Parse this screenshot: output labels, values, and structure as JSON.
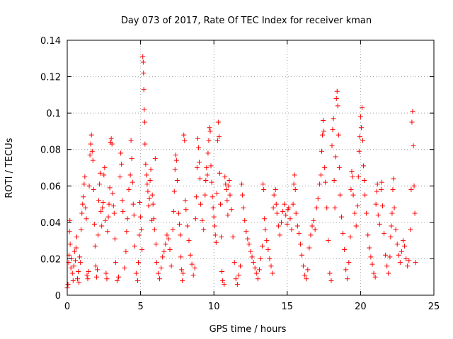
{
  "chart_data": {
    "type": "scatter",
    "title": "Day 073 of 2017, Rate Of TEC Index for receiver kman",
    "xlabel": "GPS time / hours",
    "ylabel": "ROTI / TECUs",
    "xlim": [
      0,
      25
    ],
    "ylim": [
      0,
      0.14
    ],
    "xticks": [
      "0",
      "5",
      "10",
      "15",
      "20",
      "25"
    ],
    "yticks": [
      "0",
      "0.02",
      "0.04",
      "0.06",
      "0.08",
      "0.1",
      "0.12",
      "0.14"
    ],
    "grid": true,
    "marker": "+",
    "color": "#ff0000",
    "points": [
      [
        0.0,
        0.004
      ],
      [
        0.05,
        0.006
      ],
      [
        0.1,
        0.018
      ],
      [
        0.12,
        0.022
      ],
      [
        0.15,
        0.035
      ],
      [
        0.18,
        0.041
      ],
      [
        0.2,
        0.028
      ],
      [
        0.25,
        0.015
      ],
      [
        0.3,
        0.02
      ],
      [
        0.35,
        0.012
      ],
      [
        0.4,
        0.008
      ],
      [
        0.45,
        0.016
      ],
      [
        0.5,
        0.024
      ],
      [
        0.55,
        0.019
      ],
      [
        0.6,
        0.026
      ],
      [
        0.65,
        0.032
      ],
      [
        0.7,
        0.009
      ],
      [
        0.75,
        0.013
      ],
      [
        0.8,
        0.007
      ],
      [
        0.85,
        0.021
      ],
      [
        0.9,
        0.018
      ],
      [
        0.95,
        0.036
      ],
      [
        1.0,
        0.045
      ],
      [
        1.05,
        0.05
      ],
      [
        1.1,
        0.054
      ],
      [
        1.15,
        0.061
      ],
      [
        1.2,
        0.065
      ],
      [
        1.25,
        0.048
      ],
      [
        1.3,
        0.042
      ],
      [
        1.35,
        0.011
      ],
      [
        1.4,
        0.009
      ],
      [
        1.45,
        0.013
      ],
      [
        1.5,
        0.06
      ],
      [
        1.55,
        0.077
      ],
      [
        1.6,
        0.083
      ],
      [
        1.65,
        0.088
      ],
      [
        1.7,
        0.079
      ],
      [
        1.75,
        0.074
      ],
      [
        1.8,
        0.058
      ],
      [
        1.85,
        0.039
      ],
      [
        1.9,
        0.027
      ],
      [
        1.95,
        0.016
      ],
      [
        2.0,
        0.01
      ],
      [
        2.05,
        0.014
      ],
      [
        2.1,
        0.033
      ],
      [
        2.15,
        0.052
      ],
      [
        2.2,
        0.061
      ],
      [
        2.25,
        0.067
      ],
      [
        2.3,
        0.046
      ],
      [
        2.35,
        0.038
      ],
      [
        2.4,
        0.048
      ],
      [
        2.45,
        0.051
      ],
      [
        2.5,
        0.066
      ],
      [
        2.55,
        0.07
      ],
      [
        2.6,
        0.041
      ],
      [
        2.65,
        0.012
      ],
      [
        2.7,
        0.009
      ],
      [
        2.75,
        0.035
      ],
      [
        2.8,
        0.043
      ],
      [
        2.85,
        0.05
      ],
      [
        2.9,
        0.059
      ],
      [
        2.95,
        0.084
      ],
      [
        3.0,
        0.086
      ],
      [
        3.05,
        0.083
      ],
      [
        3.1,
        0.056
      ],
      [
        3.15,
        0.049
      ],
      [
        3.2,
        0.045
      ],
      [
        3.25,
        0.031
      ],
      [
        3.3,
        0.018
      ],
      [
        3.4,
        0.008
      ],
      [
        3.5,
        0.01
      ],
      [
        3.6,
        0.065
      ],
      [
        3.65,
        0.078
      ],
      [
        3.7,
        0.072
      ],
      [
        3.75,
        0.052
      ],
      [
        3.8,
        0.046
      ],
      [
        3.9,
        0.015
      ],
      [
        4.0,
        0.024
      ],
      [
        4.05,
        0.035
      ],
      [
        4.1,
        0.042
      ],
      [
        4.2,
        0.058
      ],
      [
        4.3,
        0.066
      ],
      [
        4.35,
        0.085
      ],
      [
        4.4,
        0.075
      ],
      [
        4.45,
        0.062
      ],
      [
        4.5,
        0.05
      ],
      [
        4.55,
        0.044
      ],
      [
        4.6,
        0.027
      ],
      [
        4.7,
        0.012
      ],
      [
        4.8,
        0.008
      ],
      [
        4.85,
        0.018
      ],
      [
        4.9,
        0.033
      ],
      [
        4.95,
        0.051
      ],
      [
        5.0,
        0.043
      ],
      [
        5.05,
        0.036
      ],
      [
        5.1,
        0.025
      ],
      [
        5.15,
        0.131
      ],
      [
        5.18,
        0.128
      ],
      [
        5.2,
        0.122
      ],
      [
        5.22,
        0.113
      ],
      [
        5.25,
        0.102
      ],
      [
        5.28,
        0.095
      ],
      [
        5.3,
        0.083
      ],
      [
        5.35,
        0.072
      ],
      [
        5.4,
        0.066
      ],
      [
        5.45,
        0.061
      ],
      [
        5.5,
        0.057
      ],
      [
        5.55,
        0.049
      ],
      [
        5.6,
        0.053
      ],
      [
        5.65,
        0.063
      ],
      [
        5.7,
        0.069
      ],
      [
        5.75,
        0.041
      ],
      [
        5.8,
        0.055
      ],
      [
        5.85,
        0.05
      ],
      [
        5.9,
        0.042
      ],
      [
        5.95,
        0.036
      ],
      [
        6.0,
        0.075
      ],
      [
        6.05,
        0.028
      ],
      [
        6.1,
        0.018
      ],
      [
        6.2,
        0.012
      ],
      [
        6.3,
        0.009
      ],
      [
        6.4,
        0.015
      ],
      [
        6.5,
        0.021
      ],
      [
        6.6,
        0.024
      ],
      [
        6.7,
        0.028
      ],
      [
        6.8,
        0.033
      ],
      [
        6.9,
        0.031
      ],
      [
        7.0,
        0.025
      ],
      [
        7.1,
        0.016
      ],
      [
        7.2,
        0.036
      ],
      [
        7.25,
        0.046
      ],
      [
        7.3,
        0.057
      ],
      [
        7.35,
        0.069
      ],
      [
        7.4,
        0.077
      ],
      [
        7.45,
        0.074
      ],
      [
        7.5,
        0.063
      ],
      [
        7.6,
        0.045
      ],
      [
        7.65,
        0.039
      ],
      [
        7.7,
        0.033
      ],
      [
        7.75,
        0.021
      ],
      [
        7.8,
        0.014
      ],
      [
        7.85,
        0.008
      ],
      [
        7.9,
        0.012
      ],
      [
        7.95,
        0.088
      ],
      [
        8.0,
        0.085
      ],
      [
        8.05,
        0.052
      ],
      [
        8.1,
        0.047
      ],
      [
        8.2,
        0.038
      ],
      [
        8.3,
        0.03
      ],
      [
        8.4,
        0.022
      ],
      [
        8.5,
        0.017
      ],
      [
        8.6,
        0.011
      ],
      [
        8.7,
        0.015
      ],
      [
        8.75,
        0.042
      ],
      [
        8.8,
        0.054
      ],
      [
        8.85,
        0.07
      ],
      [
        8.9,
        0.086
      ],
      [
        8.95,
        0.081
      ],
      [
        9.0,
        0.073
      ],
      [
        9.05,
        0.064
      ],
      [
        9.1,
        0.05
      ],
      [
        9.2,
        0.041
      ],
      [
        9.3,
        0.036
      ],
      [
        9.4,
        0.055
      ],
      [
        9.45,
        0.063
      ],
      [
        9.5,
        0.07
      ],
      [
        9.55,
        0.066
      ],
      [
        9.6,
        0.078
      ],
      [
        9.65,
        0.085
      ],
      [
        9.7,
        0.092
      ],
      [
        9.75,
        0.09
      ],
      [
        9.8,
        0.071
      ],
      [
        9.85,
        0.062
      ],
      [
        9.9,
        0.054
      ],
      [
        9.95,
        0.048
      ],
      [
        10.0,
        0.043
      ],
      [
        10.05,
        0.038
      ],
      [
        10.1,
        0.033
      ],
      [
        10.15,
        0.029
      ],
      [
        10.2,
        0.056
      ],
      [
        10.25,
        0.085
      ],
      [
        10.3,
        0.095
      ],
      [
        10.35,
        0.087
      ],
      [
        10.4,
        0.067
      ],
      [
        10.45,
        0.05
      ],
      [
        10.5,
        0.032
      ],
      [
        10.55,
        0.013
      ],
      [
        10.6,
        0.008
      ],
      [
        10.7,
        0.006
      ],
      [
        10.75,
        0.065
      ],
      [
        10.8,
        0.061
      ],
      [
        10.85,
        0.058
      ],
      [
        10.9,
        0.052
      ],
      [
        10.95,
        0.044
      ],
      [
        11.0,
        0.06
      ],
      [
        11.05,
        0.063
      ],
      [
        11.1,
        0.055
      ],
      [
        11.2,
        0.047
      ],
      [
        11.3,
        0.032
      ],
      [
        11.4,
        0.018
      ],
      [
        11.5,
        0.009
      ],
      [
        11.6,
        0.006
      ],
      [
        11.7,
        0.011
      ],
      [
        11.8,
        0.016
      ],
      [
        11.9,
        0.061
      ],
      [
        11.95,
        0.055
      ],
      [
        12.0,
        0.048
      ],
      [
        12.1,
        0.041
      ],
      [
        12.2,
        0.035
      ],
      [
        12.3,
        0.031
      ],
      [
        12.4,
        0.028
      ],
      [
        12.5,
        0.024
      ],
      [
        12.6,
        0.021
      ],
      [
        12.7,
        0.018
      ],
      [
        12.8,
        0.015
      ],
      [
        12.9,
        0.012
      ],
      [
        13.0,
        0.009
      ],
      [
        13.1,
        0.014
      ],
      [
        13.2,
        0.02
      ],
      [
        13.3,
        0.027
      ],
      [
        13.35,
        0.061
      ],
      [
        13.4,
        0.058
      ],
      [
        13.45,
        0.042
      ],
      [
        13.5,
        0.036
      ],
      [
        13.6,
        0.03
      ],
      [
        13.7,
        0.025
      ],
      [
        13.8,
        0.02
      ],
      [
        13.9,
        0.016
      ],
      [
        14.0,
        0.012
      ],
      [
        14.05,
        0.048
      ],
      [
        14.1,
        0.055
      ],
      [
        14.2,
        0.058
      ],
      [
        14.25,
        0.05
      ],
      [
        14.3,
        0.045
      ],
      [
        14.4,
        0.038
      ],
      [
        14.5,
        0.033
      ],
      [
        14.6,
        0.04
      ],
      [
        14.7,
        0.046
      ],
      [
        14.8,
        0.05
      ],
      [
        14.9,
        0.044
      ],
      [
        15.0,
        0.039
      ],
      [
        15.05,
        0.047
      ],
      [
        15.1,
        0.048
      ],
      [
        15.2,
        0.042
      ],
      [
        15.3,
        0.036
      ],
      [
        15.4,
        0.05
      ],
      [
        15.45,
        0.061
      ],
      [
        15.5,
        0.066
      ],
      [
        15.55,
        0.058
      ],
      [
        15.6,
        0.045
      ],
      [
        15.7,
        0.038
      ],
      [
        15.8,
        0.034
      ],
      [
        15.9,
        0.028
      ],
      [
        16.0,
        0.022
      ],
      [
        16.1,
        0.016
      ],
      [
        16.2,
        0.011
      ],
      [
        16.3,
        0.009
      ],
      [
        16.4,
        0.014
      ],
      [
        16.5,
        0.026
      ],
      [
        16.6,
        0.033
      ],
      [
        16.7,
        0.038
      ],
      [
        16.8,
        0.041
      ],
      [
        16.9,
        0.036
      ],
      [
        17.0,
        0.048
      ],
      [
        17.1,
        0.053
      ],
      [
        17.2,
        0.061
      ],
      [
        17.3,
        0.066
      ],
      [
        17.35,
        0.079
      ],
      [
        17.4,
        0.088
      ],
      [
        17.45,
        0.096
      ],
      [
        17.5,
        0.09
      ],
      [
        17.55,
        0.07
      ],
      [
        17.6,
        0.062
      ],
      [
        17.7,
        0.048
      ],
      [
        17.8,
        0.03
      ],
      [
        17.9,
        0.012
      ],
      [
        18.0,
        0.008
      ],
      [
        18.05,
        0.082
      ],
      [
        18.1,
        0.091
      ],
      [
        18.15,
        0.097
      ],
      [
        18.2,
        0.063
      ],
      [
        18.25,
        0.048
      ],
      [
        18.3,
        0.076
      ],
      [
        18.35,
        0.108
      ],
      [
        18.4,
        0.112
      ],
      [
        18.45,
        0.104
      ],
      [
        18.5,
        0.088
      ],
      [
        18.55,
        0.07
      ],
      [
        18.6,
        0.055
      ],
      [
        18.7,
        0.043
      ],
      [
        18.8,
        0.034
      ],
      [
        18.9,
        0.025
      ],
      [
        19.0,
        0.014
      ],
      [
        19.1,
        0.009
      ],
      [
        19.2,
        0.018
      ],
      [
        19.3,
        0.032
      ],
      [
        19.35,
        0.058
      ],
      [
        19.4,
        0.068
      ],
      [
        19.45,
        0.065
      ],
      [
        19.5,
        0.055
      ],
      [
        19.6,
        0.045
      ],
      [
        19.7,
        0.038
      ],
      [
        19.8,
        0.049
      ],
      [
        19.85,
        0.065
      ],
      [
        19.9,
        0.079
      ],
      [
        19.95,
        0.087
      ],
      [
        20.0,
        0.098
      ],
      [
        20.05,
        0.092
      ],
      [
        20.1,
        0.103
      ],
      [
        20.15,
        0.085
      ],
      [
        20.2,
        0.071
      ],
      [
        20.25,
        0.063
      ],
      [
        20.3,
        0.055
      ],
      [
        20.4,
        0.045
      ],
      [
        20.5,
        0.033
      ],
      [
        20.6,
        0.026
      ],
      [
        20.7,
        0.021
      ],
      [
        20.8,
        0.017
      ],
      [
        20.9,
        0.012
      ],
      [
        21.0,
        0.01
      ],
      [
        21.05,
        0.05
      ],
      [
        21.1,
        0.057
      ],
      [
        21.15,
        0.061
      ],
      [
        21.2,
        0.044
      ],
      [
        21.3,
        0.039
      ],
      [
        21.4,
        0.058
      ],
      [
        21.45,
        0.062
      ],
      [
        21.5,
        0.049
      ],
      [
        21.6,
        0.034
      ],
      [
        21.7,
        0.022
      ],
      [
        21.8,
        0.016
      ],
      [
        21.9,
        0.012
      ],
      [
        22.0,
        0.021
      ],
      [
        22.05,
        0.032
      ],
      [
        22.1,
        0.038
      ],
      [
        22.15,
        0.045
      ],
      [
        22.2,
        0.058
      ],
      [
        22.25,
        0.064
      ],
      [
        22.3,
        0.048
      ],
      [
        22.4,
        0.036
      ],
      [
        22.5,
        0.028
      ],
      [
        22.6,
        0.022
      ],
      [
        22.7,
        0.018
      ],
      [
        22.8,
        0.024
      ],
      [
        22.9,
        0.03
      ],
      [
        23.0,
        0.027
      ],
      [
        23.1,
        0.02
      ],
      [
        23.2,
        0.016
      ],
      [
        23.3,
        0.019
      ],
      [
        23.4,
        0.036
      ],
      [
        23.45,
        0.058
      ],
      [
        23.5,
        0.095
      ],
      [
        23.55,
        0.101
      ],
      [
        23.6,
        0.082
      ],
      [
        23.65,
        0.06
      ],
      [
        23.7,
        0.045
      ],
      [
        23.75,
        0.018
      ]
    ]
  }
}
